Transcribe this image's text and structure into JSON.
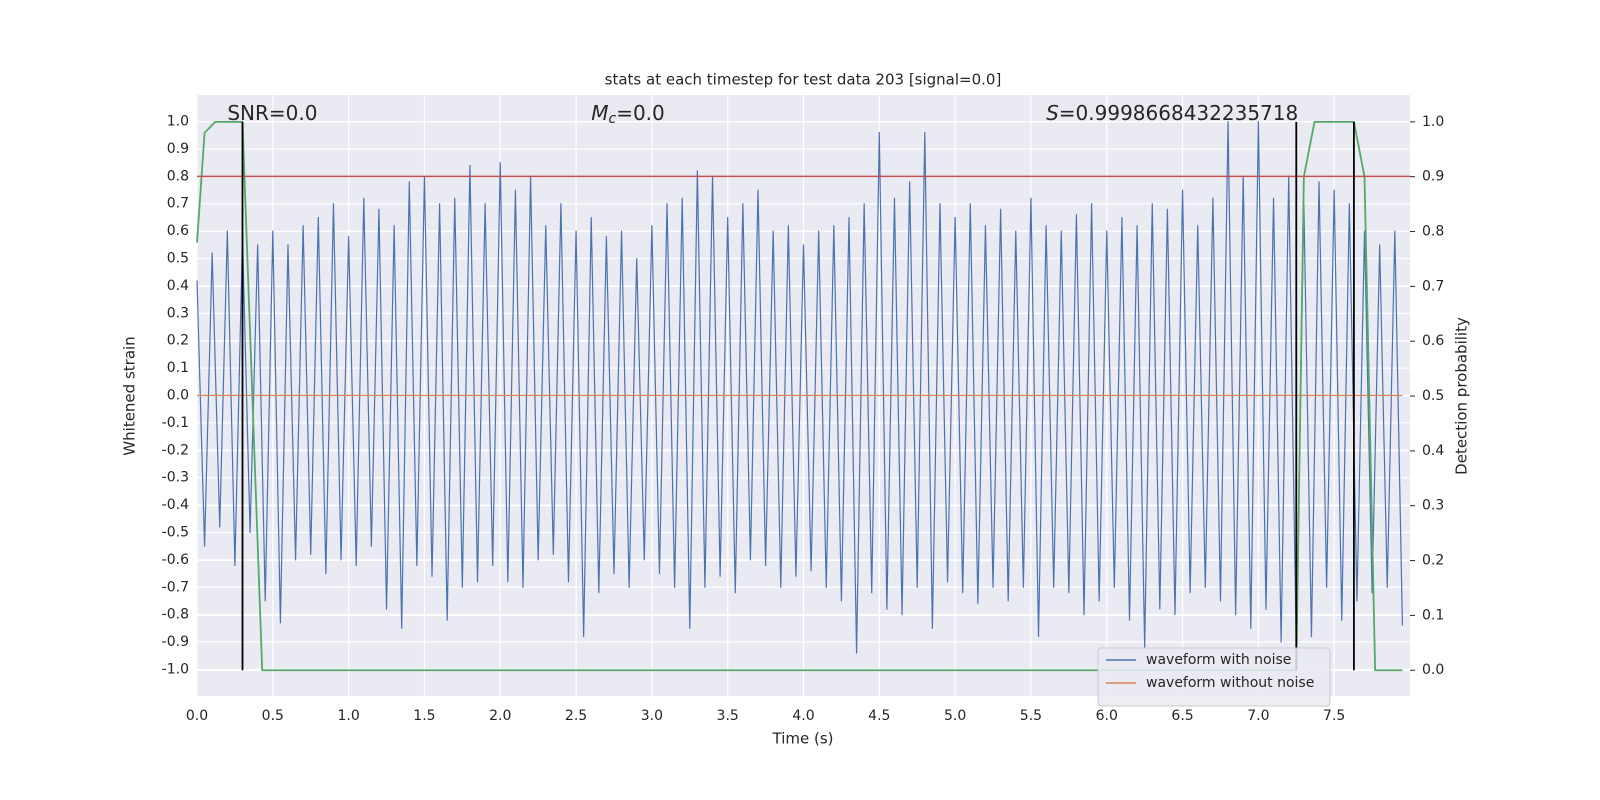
{
  "chart_data": {
    "type": "line",
    "title": "stats at each timestep for test data 203 [signal=0.0]",
    "xlabel": "Time (s)",
    "ylabel": "Whitened strain",
    "y2label": "Detection probability",
    "xlim": [
      0,
      8.0
    ],
    "ylim": [
      -1.097,
      1.097
    ],
    "y2lim": [
      -0.047,
      1.049
    ],
    "xticks": [
      {
        "value": 0,
        "label": "0.0"
      },
      0.5,
      {
        "value": 1,
        "label": "1.0"
      },
      1.5,
      {
        "value": 2,
        "label": "2.0"
      },
      2.5,
      {
        "value": 3,
        "label": "3.0"
      },
      3.5,
      {
        "value": 4,
        "label": "4.0"
      },
      4.5,
      {
        "value": 5,
        "label": "5.0"
      },
      5.5,
      {
        "value": 6,
        "label": "6.0"
      },
      6.5,
      {
        "value": 7,
        "label": "7.0"
      },
      7.5
    ],
    "yticks": [
      {
        "value": -1,
        "label": "-1.0"
      },
      -0.9,
      -0.8,
      -0.7,
      -0.6,
      -0.5,
      -0.4,
      -0.3,
      -0.2,
      -0.1,
      {
        "value": 0,
        "label": "0.0"
      },
      0.1,
      0.2,
      0.3,
      0.4,
      0.5,
      0.6,
      0.7,
      0.8,
      0.9,
      {
        "value": 1,
        "label": "1.0"
      }
    ],
    "y2ticks": [
      {
        "value": 0,
        "label": "0.0"
      },
      0.1,
      0.2,
      0.3,
      0.4,
      0.5,
      0.6,
      0.7,
      0.8,
      0.9,
      {
        "value": 1,
        "label": "1.0"
      }
    ],
    "grid": true,
    "legend": "lower right",
    "series": [
      {
        "name": "waveform with noise",
        "color": "#4c72b0",
        "x": [
          0,
          0.05,
          0.1,
          0.15,
          0.2,
          0.25,
          0.3,
          0.35,
          0.4,
          0.45,
          0.5,
          0.55,
          0.6,
          0.65,
          0.7,
          0.75,
          0.8,
          0.85,
          0.9,
          0.95,
          1,
          1.05,
          1.1,
          1.15,
          1.2,
          1.25,
          1.3,
          1.35,
          1.4,
          1.45,
          1.5,
          1.55,
          1.6,
          1.65,
          1.7,
          1.75,
          1.8,
          1.85,
          1.9,
          1.95,
          2,
          2.05,
          2.1,
          2.15,
          2.2,
          2.25,
          2.3,
          2.35,
          2.4,
          2.45,
          2.5,
          2.55,
          2.6,
          2.65,
          2.7,
          2.75,
          2.8,
          2.85,
          2.9,
          2.95,
          3,
          3.05,
          3.1,
          3.15,
          3.2,
          3.25,
          3.3,
          3.35,
          3.4,
          3.45,
          3.5,
          3.55,
          3.6,
          3.65,
          3.7,
          3.75,
          3.8,
          3.85,
          3.9,
          3.95,
          4,
          4.05,
          4.1,
          4.15,
          4.2,
          4.25,
          4.3,
          4.35,
          4.4,
          4.45,
          4.5,
          4.55,
          4.6,
          4.65,
          4.7,
          4.75,
          4.8,
          4.85,
          4.9,
          4.95,
          5,
          5.05,
          5.1,
          5.15,
          5.2,
          5.25,
          5.3,
          5.35,
          5.4,
          5.45,
          5.5,
          5.55,
          5.6,
          5.65,
          5.7,
          5.75,
          5.8,
          5.85,
          5.9,
          5.95,
          6,
          6.05,
          6.1,
          6.15,
          6.2,
          6.25,
          6.3,
          6.35,
          6.4,
          6.45,
          6.5,
          6.55,
          6.6,
          6.65,
          6.7,
          6.75,
          6.8,
          6.85,
          6.9,
          6.95,
          7,
          7.05,
          7.1,
          7.15,
          7.2,
          7.25,
          7.3,
          7.35,
          7.4,
          7.45,
          7.5,
          7.55,
          7.6,
          7.65,
          7.7,
          7.75,
          7.8,
          7.85,
          7.9,
          7.95
        ],
        "values": [
          0.42,
          -0.55,
          0.52,
          -0.48,
          0.6,
          -0.62,
          0.58,
          -0.5,
          0.55,
          -0.75,
          0.6,
          -0.83,
          0.55,
          -0.6,
          0.62,
          -0.58,
          0.65,
          -0.65,
          0.7,
          -0.6,
          0.58,
          -0.62,
          0.72,
          -0.55,
          0.68,
          -0.78,
          0.62,
          -0.85,
          0.78,
          -0.62,
          0.8,
          -0.66,
          0.7,
          -0.82,
          0.72,
          -0.7,
          0.84,
          -0.68,
          0.7,
          -0.62,
          0.85,
          -0.68,
          0.75,
          -0.7,
          0.8,
          -0.6,
          0.62,
          -0.58,
          0.7,
          -0.68,
          0.6,
          -0.88,
          0.65,
          -0.72,
          0.58,
          -0.65,
          0.6,
          -0.7,
          0.5,
          -0.6,
          0.62,
          -0.65,
          0.7,
          -0.7,
          0.72,
          -0.85,
          0.82,
          -0.7,
          0.8,
          -0.66,
          0.65,
          -0.72,
          0.7,
          -0.6,
          0.75,
          -0.62,
          0.6,
          -0.7,
          0.62,
          -0.66,
          0.55,
          -0.64,
          0.6,
          -0.7,
          0.62,
          -0.75,
          0.65,
          -0.94,
          0.7,
          -0.72,
          0.96,
          -0.78,
          0.72,
          -0.8,
          0.78,
          -0.7,
          0.96,
          -0.85,
          0.7,
          -0.68,
          0.65,
          -0.72,
          0.7,
          -0.76,
          0.62,
          -0.7,
          0.68,
          -0.75,
          0.6,
          -0.7,
          0.72,
          -0.88,
          0.62,
          -0.7,
          0.6,
          -0.72,
          0.66,
          -0.8,
          0.7,
          -0.75,
          0.6,
          -0.7,
          0.65,
          -0.82,
          0.62,
          -0.92,
          0.7,
          -0.78,
          0.68,
          -0.8,
          0.75,
          -0.72,
          0.62,
          -0.7,
          0.72,
          -0.75,
          1.0,
          -0.8,
          0.8,
          -0.85,
          1.0,
          -0.78,
          0.72,
          -0.9,
          0.8,
          -0.92,
          0.7,
          -0.88,
          0.78,
          -0.7,
          0.75,
          -0.82,
          0.7,
          -0.75,
          0.6,
          -0.72,
          0.55,
          -0.7,
          0.6,
          -0.84
        ]
      },
      {
        "name": "waveform without noise",
        "color": "#dd8452",
        "x": [
          0,
          7.95
        ],
        "values": [
          0,
          0
        ]
      },
      {
        "color": "#55a868",
        "axis": "y2",
        "x": [
          0,
          0.05,
          0.12,
          0.3,
          0.43,
          7.25,
          7.3,
          7.37,
          7.63,
          7.7,
          7.77,
          7.95
        ],
        "values": [
          0.78,
          0.98,
          1.0,
          1.0,
          0,
          0,
          0.9,
          1.0,
          1.0,
          0.9,
          0,
          0
        ]
      }
    ],
    "hline": {
      "value": 0.8,
      "color": "#c44e52"
    },
    "vlines": {
      "x": [
        0.3,
        7.25,
        7.63
      ],
      "range_y2": [
        0,
        1
      ],
      "color": "#000000"
    },
    "annotations": [
      {
        "x": 0.2,
        "text": "SNR=0.0"
      },
      {
        "x": 2.6,
        "symbol": "M",
        "subscript": "c",
        "text": "=0.0"
      },
      {
        "x": 5.6,
        "symbol": "S",
        "text": "=0.9998668432235718"
      }
    ]
  }
}
